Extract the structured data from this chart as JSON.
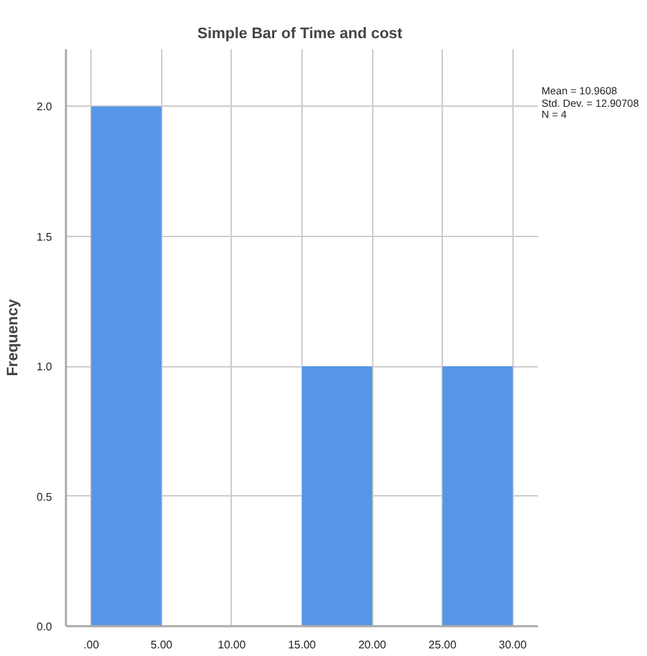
{
  "chart_data": {
    "type": "histogram",
    "title": "Simple Bar of Time  and cost",
    "ylabel": "Frequency",
    "bins": [
      0,
      5,
      10,
      15,
      20,
      25,
      30
    ],
    "values": [
      2,
      0,
      0,
      1,
      0,
      1
    ],
    "color": "#5596e6",
    "xlim": [
      -1.8,
      31.8
    ],
    "ylim": [
      0,
      2.22
    ],
    "xticks": [
      {
        "value": 0,
        "label": ".00"
      },
      {
        "value": 5,
        "label": "5.00"
      },
      {
        "value": 10,
        "label": "10.00"
      },
      {
        "value": 15,
        "label": "15.00"
      },
      {
        "value": 20,
        "label": "20.00"
      },
      {
        "value": 25,
        "label": "25.00"
      },
      {
        "value": 30,
        "label": "30.00"
      }
    ],
    "yticks": [
      {
        "value": 0,
        "label": "0.0"
      },
      {
        "value": 0.5,
        "label": "0.5"
      },
      {
        "value": 1,
        "label": "1.0"
      },
      {
        "value": 1.5,
        "label": "1.5"
      },
      {
        "value": 2,
        "label": "2.0"
      }
    ],
    "grid": true,
    "annotations": [
      "Mean = 10.9608",
      "Std. Dev. = 12.90708",
      "N = 4"
    ]
  }
}
